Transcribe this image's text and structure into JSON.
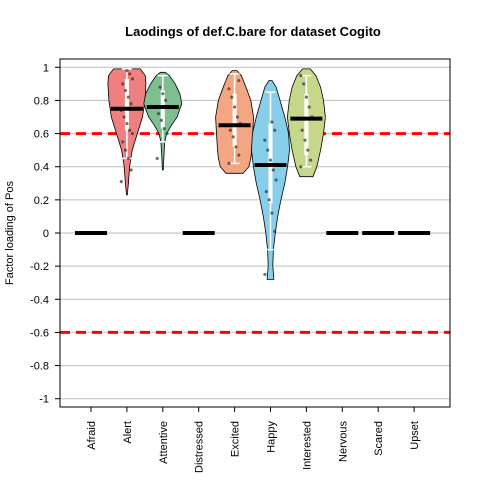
{
  "chart_data": {
    "type": "violin",
    "title": "Laodings of def.C.bare for dataset Cogito",
    "xlabel": "",
    "ylabel": "Factor loading of Pos",
    "ylim": [
      -1.05,
      1.05
    ],
    "yticks": [
      1,
      0.8,
      0.6,
      0.4,
      0.2,
      0,
      -0.2,
      -0.4,
      -0.6,
      -0.8,
      -1
    ],
    "ytick_labels": [
      "1",
      "0.8",
      "0.6",
      "0.4",
      "0.2",
      "0",
      "-0.2",
      "-0.4",
      "-0.6",
      "-0.8",
      "-1"
    ],
    "reference_lines": [
      0.6,
      -0.6
    ],
    "reference_color": "#ff0000",
    "grid": true,
    "categories": [
      "Afraid",
      "Alert",
      "Attentive",
      "Distressed",
      "Excited",
      "Happy",
      "Interested",
      "Nervous",
      "Scared",
      "Upset"
    ],
    "series": [
      {
        "name": "Afraid",
        "median": 0,
        "color": null,
        "violin": null
      },
      {
        "name": "Alert",
        "median": 0.75,
        "color": "#f08080",
        "violin": {
          "min": 0.23,
          "max": 0.99,
          "q1": 0.62,
          "q3": 0.93,
          "wlo": 0.45,
          "whi": 0.99,
          "profile": [
            [
              0.23,
              0.02
            ],
            [
              0.3,
              0.08
            ],
            [
              0.4,
              0.14
            ],
            [
              0.5,
              0.28
            ],
            [
              0.6,
              0.55
            ],
            [
              0.7,
              0.82
            ],
            [
              0.8,
              0.95
            ],
            [
              0.9,
              1
            ],
            [
              0.95,
              0.97
            ],
            [
              0.99,
              0.7
            ]
          ]
        },
        "points": [
          0.31,
          0.38,
          0.45,
          0.5,
          0.55,
          0.6,
          0.62,
          0.66,
          0.7,
          0.74,
          0.78,
          0.82,
          0.86,
          0.9,
          0.93,
          0.96,
          0.98
        ]
      },
      {
        "name": "Attentive",
        "median": 0.76,
        "color": "#7fbf8f",
        "violin": {
          "min": 0.38,
          "max": 0.97,
          "q1": 0.63,
          "q3": 0.86,
          "wlo": 0.55,
          "whi": 0.95,
          "profile": [
            [
              0.38,
              0.02
            ],
            [
              0.45,
              0.05
            ],
            [
              0.55,
              0.1
            ],
            [
              0.6,
              0.2
            ],
            [
              0.65,
              0.45
            ],
            [
              0.7,
              0.75
            ],
            [
              0.78,
              1
            ],
            [
              0.84,
              0.9
            ],
            [
              0.9,
              0.65
            ],
            [
              0.95,
              0.35
            ],
            [
              0.97,
              0.12
            ]
          ]
        },
        "points": [
          0.45,
          0.6,
          0.63,
          0.68,
          0.72,
          0.76,
          0.8,
          0.84,
          0.88
        ]
      },
      {
        "name": "Distressed",
        "median": 0,
        "color": null,
        "violin": null
      },
      {
        "name": "Excited",
        "median": 0.65,
        "color": "#f4a582",
        "violin": {
          "min": 0.36,
          "max": 0.98,
          "q1": 0.52,
          "q3": 0.84,
          "wlo": 0.42,
          "whi": 0.96,
          "profile": [
            [
              0.36,
              0.45
            ],
            [
              0.4,
              0.75
            ],
            [
              0.45,
              0.85
            ],
            [
              0.5,
              0.9
            ],
            [
              0.6,
              0.95
            ],
            [
              0.7,
              1
            ],
            [
              0.8,
              0.85
            ],
            [
              0.88,
              0.6
            ],
            [
              0.95,
              0.35
            ],
            [
              0.98,
              0.12
            ]
          ]
        },
        "points": [
          0.42,
          0.47,
          0.52,
          0.58,
          0.62,
          0.66,
          0.7,
          0.76,
          0.82,
          0.87,
          0.92
        ]
      },
      {
        "name": "Happy",
        "median": 0.41,
        "color": "#87ceeb",
        "violin": {
          "min": -0.28,
          "max": 0.92,
          "q1": 0.18,
          "q3": 0.66,
          "wlo": -0.1,
          "whi": 0.85,
          "profile": [
            [
              -0.28,
              0.18
            ],
            [
              -0.2,
              0.12
            ],
            [
              -0.1,
              0.15
            ],
            [
              0,
              0.25
            ],
            [
              0.1,
              0.38
            ],
            [
              0.2,
              0.55
            ],
            [
              0.3,
              0.75
            ],
            [
              0.4,
              0.9
            ],
            [
              0.5,
              1
            ],
            [
              0.6,
              0.95
            ],
            [
              0.7,
              0.75
            ],
            [
              0.8,
              0.5
            ],
            [
              0.88,
              0.3
            ],
            [
              0.92,
              0.08
            ]
          ]
        },
        "points": [
          -0.25,
          0.01,
          0.12,
          0.2,
          0.25,
          0.32,
          0.38,
          0.44,
          0.5,
          0.56,
          0.62,
          0.67
        ]
      },
      {
        "name": "Interested",
        "median": 0.69,
        "color": "#c5d88a",
        "violin": {
          "min": 0.34,
          "max": 0.99,
          "q1": 0.47,
          "q3": 0.84,
          "wlo": 0.4,
          "whi": 0.95,
          "profile": [
            [
              0.34,
              0.35
            ],
            [
              0.4,
              0.55
            ],
            [
              0.5,
              0.75
            ],
            [
              0.6,
              0.9
            ],
            [
              0.7,
              1
            ],
            [
              0.8,
              0.9
            ],
            [
              0.88,
              0.75
            ],
            [
              0.95,
              0.5
            ],
            [
              0.99,
              0.2
            ]
          ]
        },
        "points": [
          0.4,
          0.44,
          0.5,
          0.56,
          0.62,
          0.7,
          0.76,
          0.82,
          0.9,
          0.95
        ]
      },
      {
        "name": "Nervous",
        "median": 0,
        "color": null,
        "violin": null
      },
      {
        "name": "Scared",
        "median": 0,
        "color": null,
        "violin": null
      },
      {
        "name": "Upset",
        "median": 0,
        "color": null,
        "violin": null
      }
    ]
  }
}
